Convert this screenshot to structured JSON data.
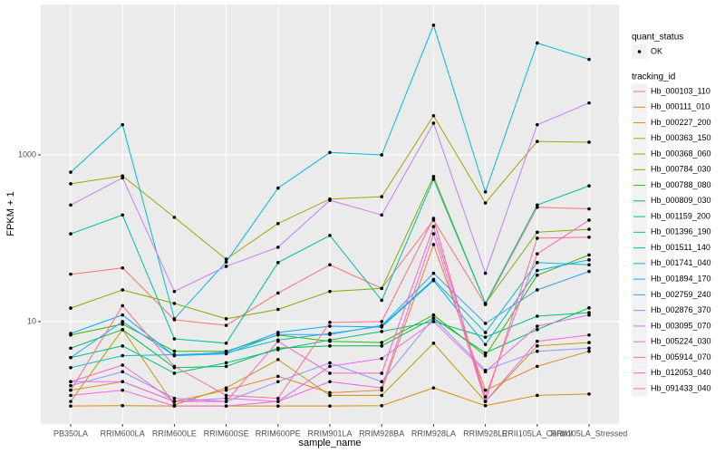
{
  "chart_data": {
    "type": "line",
    "x_label": "sample_name",
    "y_label": "FPKM + 1",
    "y_scale": "log",
    "ylim": [
      0.59,
      63700
    ],
    "yticks": [
      10,
      1000
    ],
    "grid": true,
    "point_color": "#000000",
    "point_legend": {
      "title": "quant_status",
      "labels": [
        "OK"
      ]
    },
    "legend_title": "tracking_id",
    "legend_position": "right",
    "categories": [
      "PB350LA",
      "RRIM600LA",
      "RRIM600LE",
      "RRIM600SE",
      "RRIM600PE",
      "RRIM901LA",
      "RRIM928BA",
      "RRIM928LA",
      "RRIM928LE",
      "RRII105LA_Control",
      "RRII105LA_Stressed"
    ],
    "series": [
      {
        "name": "Hb_000103_110",
        "color": "#F8766D",
        "values": [
          37,
          44,
          10.5,
          9,
          22,
          48,
          25,
          165,
          16,
          235,
          225
        ]
      },
      {
        "name": "Hb_000111_010",
        "color": "#EA8331",
        "values": [
          1.5,
          1.9,
          1.1,
          1.5,
          2.2,
          1.4,
          1.5,
          84,
          1.5,
          2.9,
          4.4
        ]
      },
      {
        "name": "Hb_000227_200",
        "color": "#D89000",
        "values": [
          0.97,
          0.98,
          0.97,
          0.97,
          0.97,
          0.97,
          0.98,
          1.6,
          0.98,
          1.3,
          1.35
        ]
      },
      {
        "name": "Hb_000363_150",
        "color": "#C09B00",
        "values": [
          1.1,
          8,
          1.0,
          1.6,
          3.5,
          1.3,
          1.3,
          5.5,
          1.1,
          5.1,
          5.6
        ]
      },
      {
        "name": "Hb_000368_060",
        "color": "#A3A500",
        "values": [
          450,
          560,
          178,
          56,
          150,
          295,
          315,
          2950,
          265,
          1450,
          1420
        ]
      },
      {
        "name": "Hb_000784_030",
        "color": "#7CAE00",
        "values": [
          14.5,
          24,
          16.5,
          10.8,
          14,
          23,
          25,
          550,
          16.5,
          118,
          128
        ]
      },
      {
        "name": "Hb_000788_080",
        "color": "#39B600",
        "values": [
          6.9,
          9.3,
          4.4,
          4.4,
          6.9,
          5.8,
          5.6,
          12,
          3.9,
          36,
          63
        ]
      },
      {
        "name": "Hb_000809_030",
        "color": "#00BB4E",
        "values": [
          4.8,
          8,
          2.8,
          2.9,
          4.8,
          5.1,
          5.1,
          11,
          4.2,
          8,
          14.6
        ]
      },
      {
        "name": "Hb_001159_200",
        "color": "#00BF7D",
        "values": [
          3.7,
          5.1,
          2.4,
          3.2,
          4.6,
          6,
          7.6,
          10,
          6.5,
          11.6,
          12.8
        ]
      },
      {
        "name": "Hb_001396_190",
        "color": "#00C1A3",
        "values": [
          113,
          190,
          6.2,
          5.5,
          51,
          108,
          18,
          510,
          16.5,
          250,
          425
        ]
      },
      {
        "name": "Hb_001511_140",
        "color": "#00BFC4",
        "values": [
          2.8,
          3.9,
          4,
          4.2,
          6,
          7.2,
          8.8,
          32,
          7.4,
          51,
          48
        ]
      },
      {
        "name": "Hb_001741_040",
        "color": "#00BAE0",
        "values": [
          620,
          2300,
          10.8,
          52,
          400,
          1070,
          1000,
          36000,
          360,
          22000,
          14000
        ]
      },
      {
        "name": "Hb_001894_170",
        "color": "#00B0F6",
        "values": [
          7.2,
          12,
          3.9,
          4.3,
          7.4,
          8.8,
          8.6,
          31,
          5.3,
          41,
          55
        ]
      },
      {
        "name": "Hb_002759_240",
        "color": "#35A2FF",
        "values": [
          3.7,
          10,
          3.9,
          4.1,
          7,
          7,
          9,
          38,
          9.5,
          24,
          40
        ]
      },
      {
        "name": "Hb_002876_370",
        "color": "#9590FF",
        "values": [
          1.7,
          2.5,
          1.2,
          1.1,
          1.9,
          3.2,
          1.9,
          11,
          2.6,
          4.4,
          4.8
        ]
      },
      {
        "name": "Hb_003095_070",
        "color": "#C77CFF",
        "values": [
          250,
          530,
          23,
          46,
          78,
          285,
          190,
          2400,
          38,
          2300,
          4200
        ]
      },
      {
        "name": "Hb_005224_030",
        "color": "#E76BF3",
        "values": [
          1.9,
          1.9,
          1.1,
          1.2,
          1.1,
          2.9,
          3.6,
          10,
          2.5,
          8.8,
          12
        ]
      },
      {
        "name": "Hb_005914_070",
        "color": "#FA62DB",
        "values": [
          1.3,
          1.5,
          0.97,
          0.97,
          1.1,
          1.9,
          1.6,
          113,
          1.1,
          5.8,
          6.9
        ]
      },
      {
        "name": "Hb_012053_040",
        "color": "#FF62BC",
        "values": [
          1.9,
          3,
          1.1,
          1.1,
          5.8,
          2.4,
          2.4,
          138,
          1.25,
          65,
          165
        ]
      },
      {
        "name": "Hb_091433_040",
        "color": "#FF6C91",
        "values": [
          1.5,
          15.5,
          2.9,
          1.3,
          1.2,
          9.8,
          10,
          173,
          1.1,
          100,
          103
        ]
      }
    ]
  }
}
